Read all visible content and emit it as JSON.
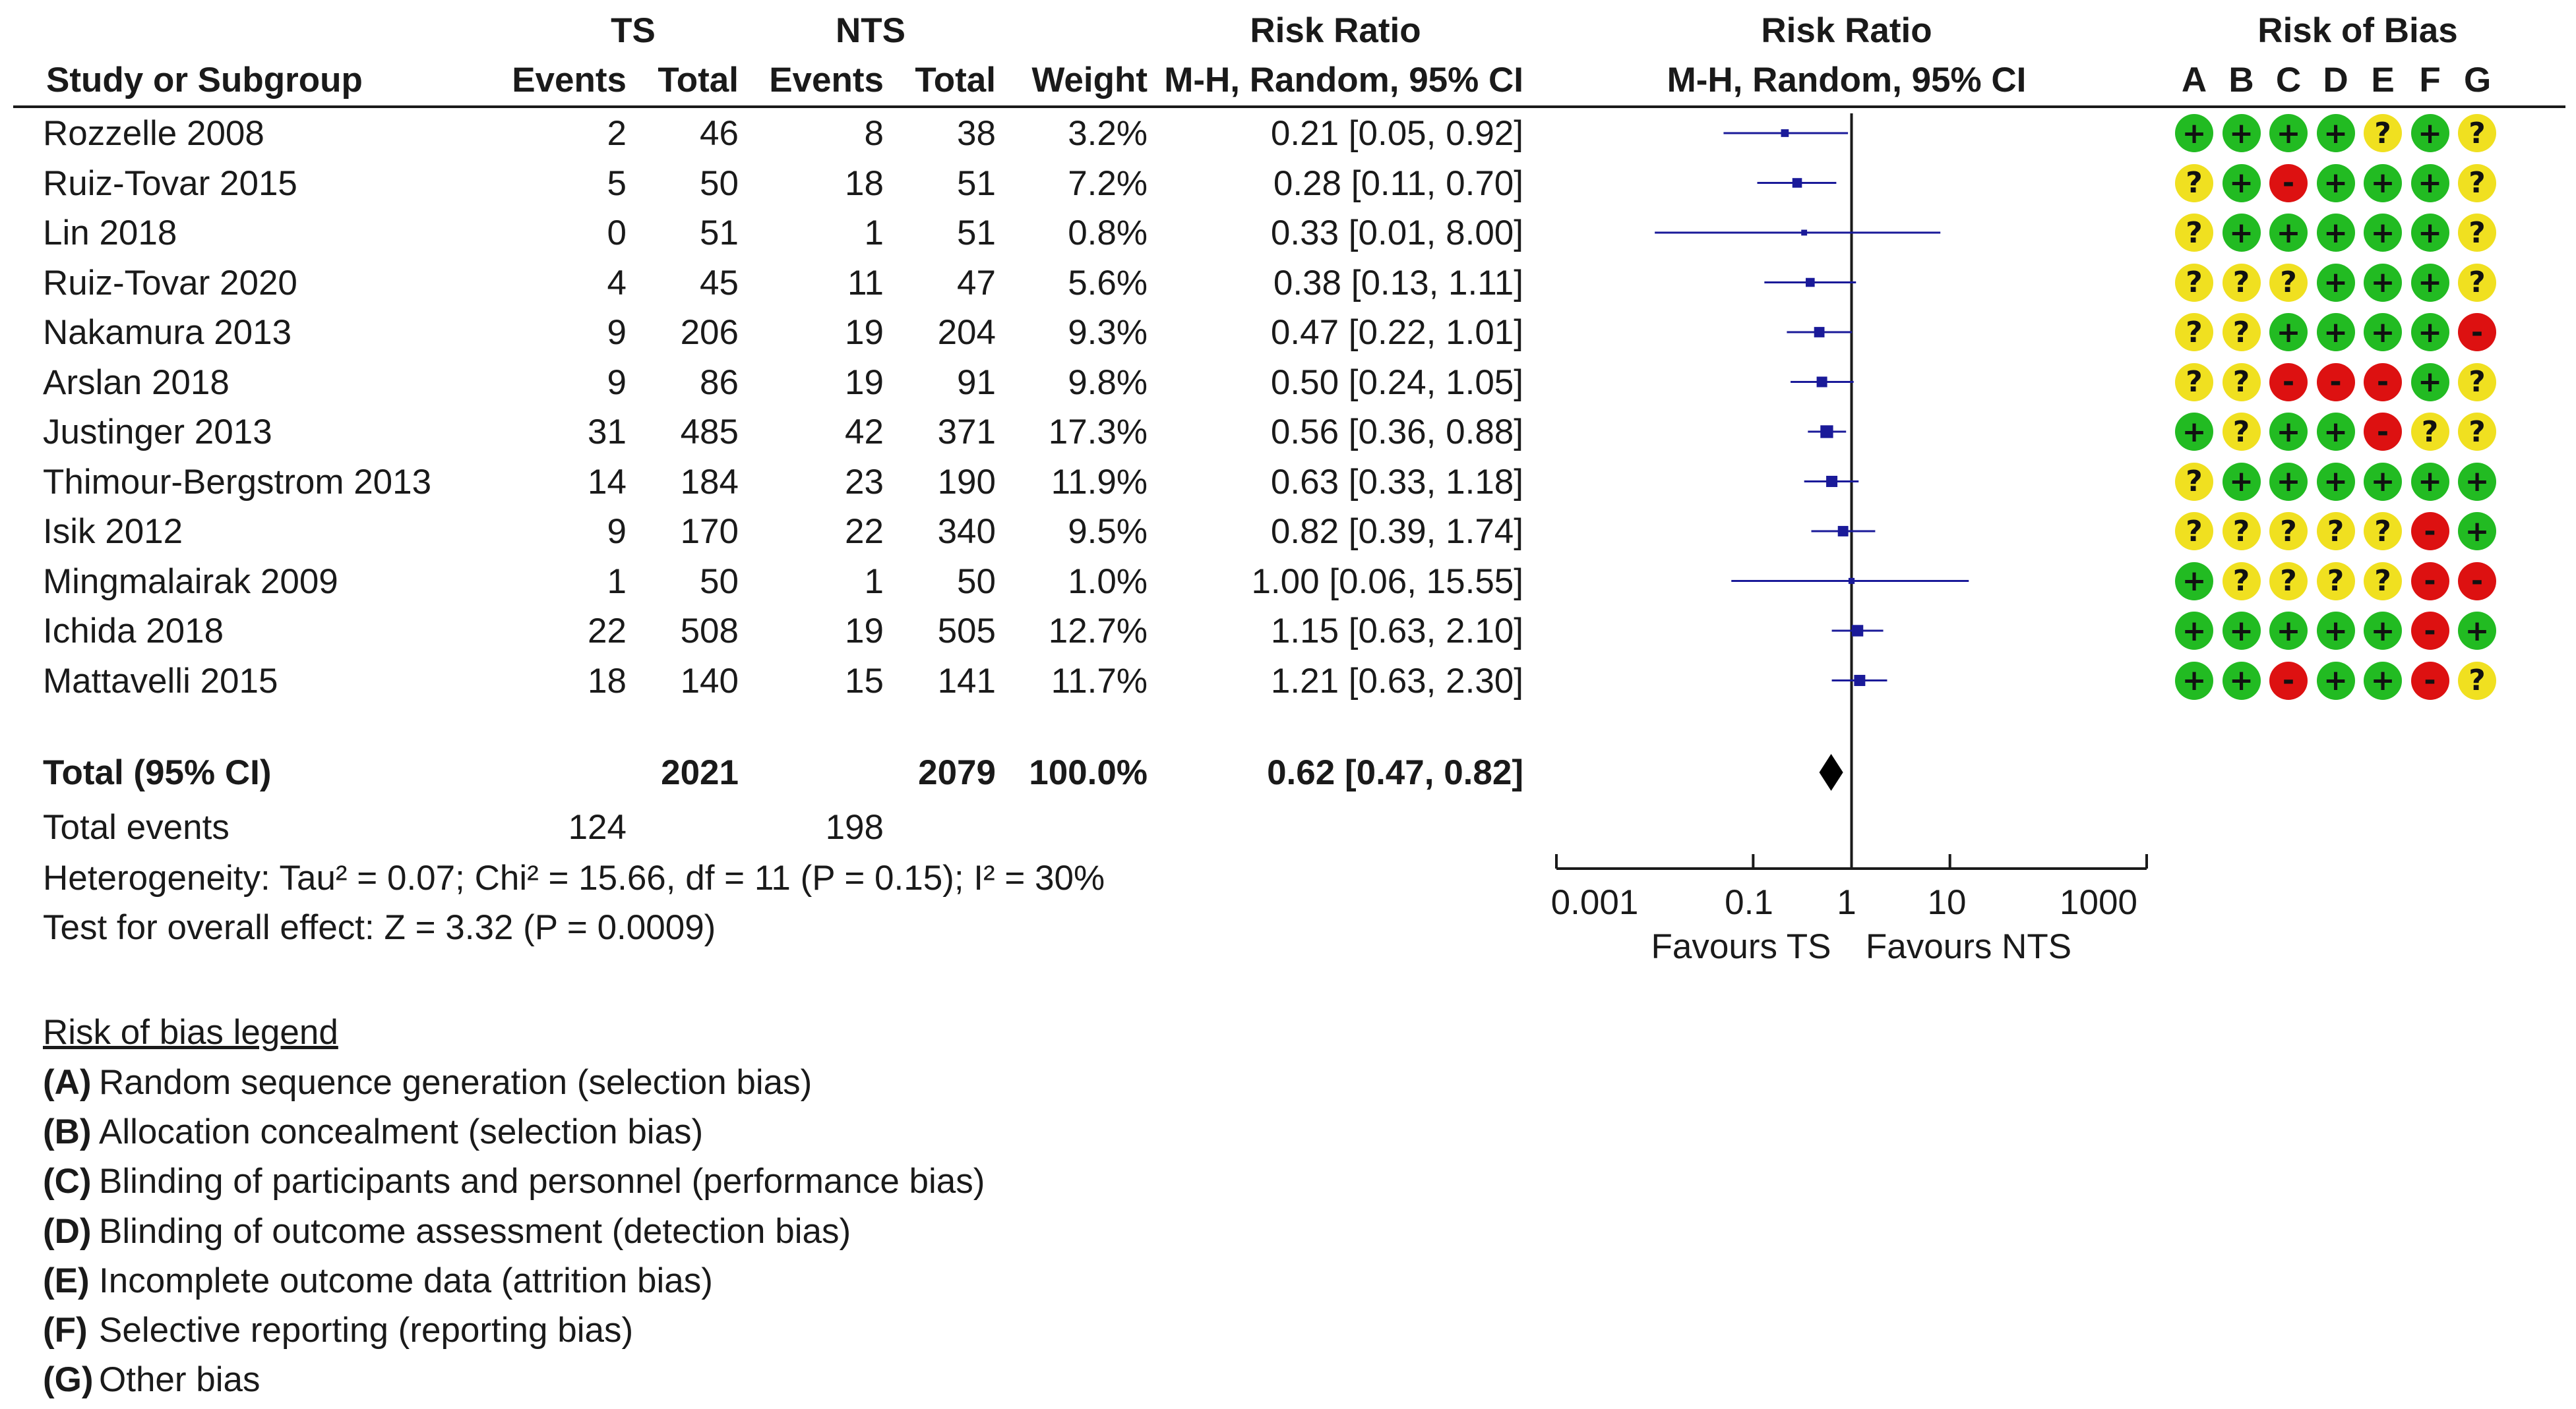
{
  "header": {
    "study_col": "Study or Subgroup",
    "group1": "TS",
    "group2": "NTS",
    "events": "Events",
    "total": "Total",
    "weight": "Weight",
    "rr_title": "Risk Ratio",
    "rr_method": "M-H, Random, 95% CI",
    "plot_title": "Risk Ratio",
    "plot_method": "M-H, Random, 95% CI",
    "rob_title": "Risk of Bias",
    "rob_letters": [
      "A",
      "B",
      "C",
      "D",
      "E",
      "F",
      "G"
    ]
  },
  "studies": [
    {
      "name": "Rozzelle 2008",
      "ts_events": "2",
      "ts_total": "46",
      "nts_events": "8",
      "nts_total": "38",
      "weight": "3.2%",
      "ci_text": "0.21 [0.05, 0.92]",
      "rr": 0.21,
      "lo": 0.05,
      "hi": 0.92,
      "w": 3.2,
      "rob": [
        "+",
        "+",
        "+",
        "+",
        "?",
        "+",
        "?"
      ]
    },
    {
      "name": "Ruiz-Tovar 2015",
      "ts_events": "5",
      "ts_total": "50",
      "nts_events": "18",
      "nts_total": "51",
      "weight": "7.2%",
      "ci_text": "0.28 [0.11, 0.70]",
      "rr": 0.28,
      "lo": 0.11,
      "hi": 0.7,
      "w": 7.2,
      "rob": [
        "?",
        "+",
        "-",
        "+",
        "+",
        "+",
        "?"
      ]
    },
    {
      "name": "Lin 2018",
      "ts_events": "0",
      "ts_total": "51",
      "nts_events": "1",
      "nts_total": "51",
      "weight": "0.8%",
      "ci_text": "0.33 [0.01, 8.00]",
      "rr": 0.33,
      "lo": 0.01,
      "hi": 8.0,
      "w": 0.8,
      "rob": [
        "?",
        "+",
        "+",
        "+",
        "+",
        "+",
        "?"
      ]
    },
    {
      "name": "Ruiz-Tovar 2020",
      "ts_events": "4",
      "ts_total": "45",
      "nts_events": "11",
      "nts_total": "47",
      "weight": "5.6%",
      "ci_text": "0.38 [0.13, 1.11]",
      "rr": 0.38,
      "lo": 0.13,
      "hi": 1.11,
      "w": 5.6,
      "rob": [
        "?",
        "?",
        "?",
        "+",
        "+",
        "+",
        "?"
      ]
    },
    {
      "name": "Nakamura 2013",
      "ts_events": "9",
      "ts_total": "206",
      "nts_events": "19",
      "nts_total": "204",
      "weight": "9.3%",
      "ci_text": "0.47 [0.22, 1.01]",
      "rr": 0.47,
      "lo": 0.22,
      "hi": 1.01,
      "w": 9.3,
      "rob": [
        "?",
        "?",
        "+",
        "+",
        "+",
        "+",
        "-"
      ]
    },
    {
      "name": "Arslan 2018",
      "ts_events": "9",
      "ts_total": "86",
      "nts_events": "19",
      "nts_total": "91",
      "weight": "9.8%",
      "ci_text": "0.50 [0.24, 1.05]",
      "rr": 0.5,
      "lo": 0.24,
      "hi": 1.05,
      "w": 9.8,
      "rob": [
        "?",
        "?",
        "-",
        "-",
        "-",
        "+",
        "?"
      ]
    },
    {
      "name": "Justinger 2013",
      "ts_events": "31",
      "ts_total": "485",
      "nts_events": "42",
      "nts_total": "371",
      "weight": "17.3%",
      "ci_text": "0.56 [0.36, 0.88]",
      "rr": 0.56,
      "lo": 0.36,
      "hi": 0.88,
      "w": 17.3,
      "rob": [
        "+",
        "?",
        "+",
        "+",
        "-",
        "?",
        "?"
      ]
    },
    {
      "name": "Thimour-Bergstrom 2013",
      "ts_events": "14",
      "ts_total": "184",
      "nts_events": "23",
      "nts_total": "190",
      "weight": "11.9%",
      "ci_text": "0.63 [0.33, 1.18]",
      "rr": 0.63,
      "lo": 0.33,
      "hi": 1.18,
      "w": 11.9,
      "rob": [
        "?",
        "+",
        "+",
        "+",
        "+",
        "+",
        "+"
      ]
    },
    {
      "name": "Isik 2012",
      "ts_events": "9",
      "ts_total": "170",
      "nts_events": "22",
      "nts_total": "340",
      "weight": "9.5%",
      "ci_text": "0.82 [0.39, 1.74]",
      "rr": 0.82,
      "lo": 0.39,
      "hi": 1.74,
      "w": 9.5,
      "rob": [
        "?",
        "?",
        "?",
        "?",
        "?",
        "-",
        "+"
      ]
    },
    {
      "name": "Mingmalairak 2009",
      "ts_events": "1",
      "ts_total": "50",
      "nts_events": "1",
      "nts_total": "50",
      "weight": "1.0%",
      "ci_text": "1.00 [0.06, 15.55]",
      "rr": 1.0,
      "lo": 0.06,
      "hi": 15.55,
      "w": 1.0,
      "rob": [
        "+",
        "?",
        "?",
        "?",
        "?",
        "-",
        "-"
      ]
    },
    {
      "name": "Ichida 2018",
      "ts_events": "22",
      "ts_total": "508",
      "nts_events": "19",
      "nts_total": "505",
      "weight": "12.7%",
      "ci_text": "1.15 [0.63, 2.10]",
      "rr": 1.15,
      "lo": 0.63,
      "hi": 2.1,
      "w": 12.7,
      "rob": [
        "+",
        "+",
        "+",
        "+",
        "+",
        "-",
        "+"
      ]
    },
    {
      "name": "Mattavelli 2015",
      "ts_events": "18",
      "ts_total": "140",
      "nts_events": "15",
      "nts_total": "141",
      "weight": "11.7%",
      "ci_text": "1.21 [0.63, 2.30]",
      "rr": 1.21,
      "lo": 0.63,
      "hi": 2.3,
      "w": 11.7,
      "rob": [
        "+",
        "+",
        "-",
        "+",
        "+",
        "-",
        "?"
      ]
    }
  ],
  "total_row": {
    "label": "Total (95% CI)",
    "ts_total": "2021",
    "nts_total": "2079",
    "weight": "100.0%",
    "ci_text": "0.62 [0.47, 0.82]",
    "rr": 0.62,
    "lo": 0.47,
    "hi": 0.82
  },
  "total_events": {
    "label": "Total events",
    "ts": "124",
    "nts": "198"
  },
  "heterogeneity": "Heterogeneity: Tau² = 0.07; Chi² = 15.66, df = 11 (P = 0.15); I² = 30%",
  "overall_effect": "Test for overall effect: Z = 3.32 (P = 0.0009)",
  "axis": {
    "ticks": [
      "0.001",
      "0.1",
      "1",
      "10",
      "1000"
    ],
    "tick_values": [
      0.001,
      0.1,
      1,
      10,
      1000
    ],
    "xlim": [
      0.001,
      1000
    ],
    "scale": "log",
    "favours_left": "Favours TS",
    "favours_right": "Favours NTS"
  },
  "legend": {
    "title": "Risk of bias legend",
    "items": [
      {
        "key": "(A)",
        "text": "Random sequence generation (selection bias)"
      },
      {
        "key": "(B)",
        "text": "Allocation concealment (selection bias)"
      },
      {
        "key": "(C)",
        "text": "Blinding of participants and personnel (performance bias)"
      },
      {
        "key": "(D)",
        "text": "Blinding of outcome assessment (detection bias)"
      },
      {
        "key": "(E)",
        "text": "Incomplete outcome data (attrition bias)"
      },
      {
        "key": "(F)",
        "text": "Selective reporting (reporting bias)"
      },
      {
        "key": "(G)",
        "text": "Other bias"
      }
    ]
  },
  "colors": {
    "low": "#22bb22",
    "unclear": "#f0e020",
    "high": "#dd1111",
    "marker": "#1a1a99"
  },
  "chart_data": {
    "type": "forest",
    "title": "Risk Ratio M-H, Random, 95% CI",
    "x_scale": "log",
    "xlim": [
      0.001,
      1000
    ],
    "xticks": [
      0.001,
      0.1,
      1,
      10,
      1000
    ],
    "xlabel_left": "Favours TS",
    "xlabel_right": "Favours NTS",
    "categories": [
      "Rozzelle 2008",
      "Ruiz-Tovar 2015",
      "Lin 2018",
      "Ruiz-Tovar 2020",
      "Nakamura 2013",
      "Arslan 2018",
      "Justinger 2013",
      "Thimour-Bergstrom 2013",
      "Isik 2012",
      "Mingmalairak 2009",
      "Ichida 2018",
      "Mattavelli 2015"
    ],
    "rr": [
      0.21,
      0.28,
      0.33,
      0.38,
      0.47,
      0.5,
      0.56,
      0.63,
      0.82,
      1.0,
      1.15,
      1.21
    ],
    "ci_low": [
      0.05,
      0.11,
      0.01,
      0.13,
      0.22,
      0.24,
      0.36,
      0.33,
      0.39,
      0.06,
      0.63,
      0.63
    ],
    "ci_high": [
      0.92,
      0.7,
      8.0,
      1.11,
      1.01,
      1.05,
      0.88,
      1.18,
      1.74,
      15.55,
      2.1,
      2.3
    ],
    "weights": [
      3.2,
      7.2,
      0.8,
      5.6,
      9.3,
      9.8,
      17.3,
      11.9,
      9.5,
      1.0,
      12.7,
      11.7
    ],
    "pooled": {
      "rr": 0.62,
      "ci_low": 0.47,
      "ci_high": 0.82
    }
  }
}
